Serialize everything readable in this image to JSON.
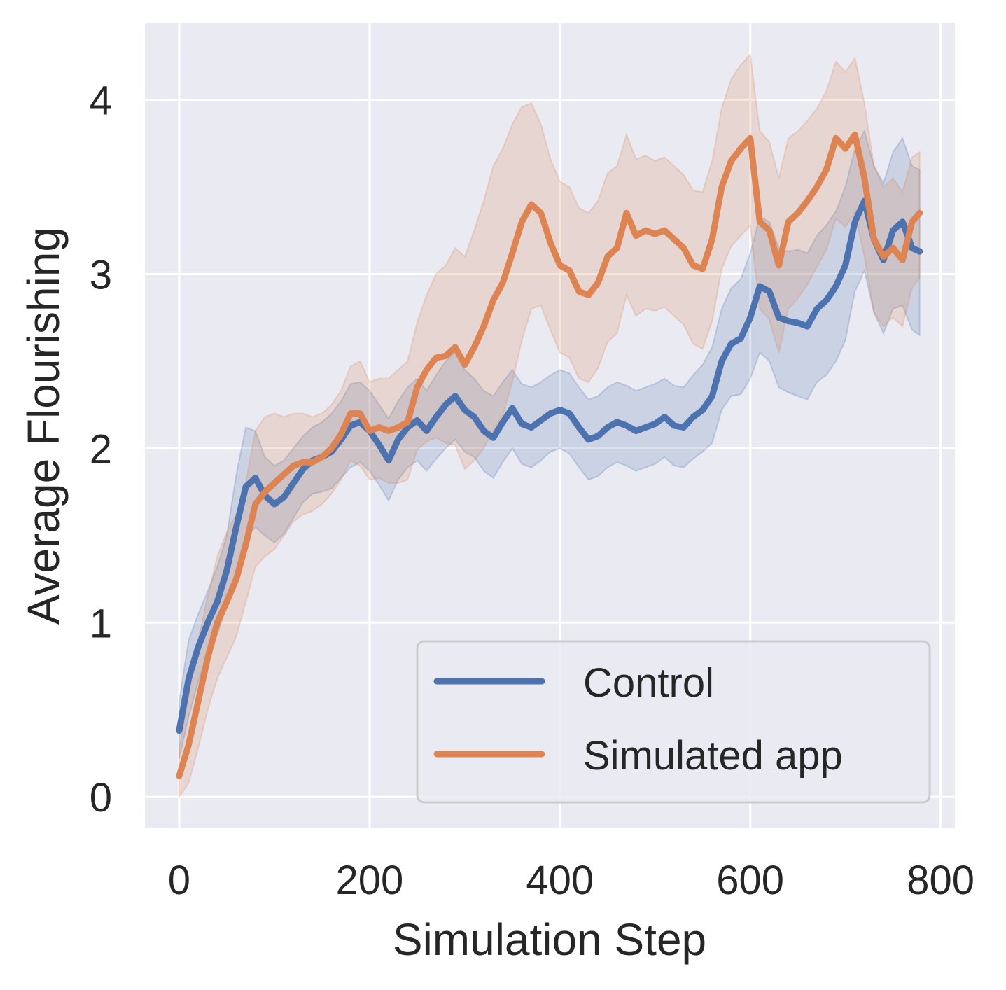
{
  "chart_data": {
    "type": "line",
    "title": "",
    "xlabel": "Simulation Step",
    "ylabel": "Average Flourishing",
    "xlim": [
      -36,
      815
    ],
    "ylim": [
      -0.18,
      4.44
    ],
    "xticks": [
      0,
      200,
      400,
      600,
      800
    ],
    "yticks": [
      0,
      1,
      2,
      3,
      4
    ],
    "grid": true,
    "legend_position": "lower-right",
    "series": [
      {
        "name": "Control",
        "color": "#4c72b0",
        "x": [
          0,
          10,
          20,
          30,
          40,
          50,
          60,
          70,
          80,
          90,
          100,
          110,
          120,
          130,
          140,
          150,
          160,
          170,
          180,
          190,
          200,
          210,
          220,
          230,
          240,
          250,
          260,
          270,
          280,
          290,
          300,
          310,
          320,
          330,
          340,
          350,
          360,
          370,
          380,
          390,
          400,
          410,
          420,
          430,
          440,
          450,
          460,
          470,
          480,
          490,
          500,
          510,
          520,
          530,
          540,
          550,
          560,
          570,
          580,
          590,
          600,
          610,
          620,
          630,
          640,
          650,
          660,
          670,
          680,
          690,
          700,
          710,
          720,
          730,
          740,
          750,
          760,
          770,
          778
        ],
        "y": [
          0.38,
          0.68,
          0.86,
          1.0,
          1.12,
          1.3,
          1.55,
          1.78,
          1.83,
          1.73,
          1.68,
          1.72,
          1.8,
          1.88,
          1.93,
          1.95,
          1.98,
          2.05,
          2.13,
          2.15,
          2.1,
          2.02,
          1.93,
          2.05,
          2.12,
          2.16,
          2.1,
          2.18,
          2.25,
          2.3,
          2.22,
          2.18,
          2.1,
          2.06,
          2.15,
          2.23,
          2.14,
          2.12,
          2.16,
          2.2,
          2.22,
          2.2,
          2.12,
          2.05,
          2.07,
          2.12,
          2.15,
          2.13,
          2.1,
          2.12,
          2.14,
          2.18,
          2.13,
          2.12,
          2.18,
          2.22,
          2.3,
          2.5,
          2.6,
          2.63,
          2.75,
          2.93,
          2.9,
          2.75,
          2.73,
          2.72,
          2.7,
          2.8,
          2.85,
          2.93,
          3.05,
          3.3,
          3.42,
          3.2,
          3.08,
          3.25,
          3.3,
          3.15,
          3.13
        ],
        "upper": [
          0.55,
          0.9,
          1.05,
          1.18,
          1.32,
          1.5,
          1.85,
          2.12,
          2.1,
          1.95,
          1.9,
          1.93,
          2.0,
          2.07,
          2.12,
          2.15,
          2.2,
          2.27,
          2.37,
          2.38,
          2.33,
          2.25,
          2.17,
          2.27,
          2.35,
          2.4,
          2.33,
          2.42,
          2.5,
          2.55,
          2.45,
          2.4,
          2.33,
          2.3,
          2.38,
          2.45,
          2.37,
          2.35,
          2.38,
          2.42,
          2.45,
          2.43,
          2.35,
          2.28,
          2.3,
          2.35,
          2.38,
          2.36,
          2.33,
          2.35,
          2.37,
          2.4,
          2.36,
          2.35,
          2.42,
          2.48,
          2.58,
          2.8,
          2.92,
          2.97,
          3.12,
          3.33,
          3.3,
          3.15,
          3.13,
          3.14,
          3.12,
          3.22,
          3.28,
          3.36,
          3.5,
          3.72,
          3.82,
          3.62,
          3.52,
          3.7,
          3.78,
          3.62,
          3.6
        ],
        "lower": [
          0.22,
          0.46,
          0.66,
          0.82,
          0.93,
          1.1,
          1.28,
          1.48,
          1.55,
          1.5,
          1.46,
          1.51,
          1.6,
          1.69,
          1.74,
          1.75,
          1.77,
          1.83,
          1.89,
          1.92,
          1.87,
          1.79,
          1.7,
          1.82,
          1.89,
          1.93,
          1.87,
          1.94,
          2.0,
          2.05,
          1.98,
          1.95,
          1.87,
          1.83,
          1.92,
          2.0,
          1.91,
          1.89,
          1.93,
          1.98,
          2.0,
          1.97,
          1.89,
          1.82,
          1.84,
          1.89,
          1.92,
          1.9,
          1.87,
          1.89,
          1.91,
          1.95,
          1.9,
          1.89,
          1.94,
          1.98,
          2.03,
          2.22,
          2.3,
          2.31,
          2.4,
          2.55,
          2.5,
          2.35,
          2.32,
          2.3,
          2.28,
          2.38,
          2.42,
          2.5,
          2.62,
          2.9,
          3.02,
          2.78,
          2.66,
          2.8,
          2.82,
          2.68,
          2.65
        ]
      },
      {
        "name": "Simulated app",
        "color": "#dd8452",
        "x": [
          0,
          10,
          20,
          30,
          40,
          50,
          60,
          70,
          80,
          90,
          100,
          110,
          120,
          130,
          140,
          150,
          160,
          170,
          180,
          190,
          200,
          210,
          220,
          230,
          240,
          250,
          260,
          270,
          280,
          290,
          300,
          310,
          320,
          330,
          340,
          350,
          360,
          370,
          380,
          390,
          400,
          410,
          420,
          430,
          440,
          450,
          460,
          470,
          480,
          490,
          500,
          510,
          520,
          530,
          540,
          550,
          560,
          570,
          580,
          590,
          600,
          610,
          620,
          630,
          640,
          650,
          660,
          670,
          680,
          690,
          700,
          710,
          720,
          730,
          740,
          750,
          760,
          770,
          778
        ],
        "y": [
          0.12,
          0.3,
          0.55,
          0.8,
          1.0,
          1.12,
          1.25,
          1.45,
          1.68,
          1.75,
          1.8,
          1.85,
          1.9,
          1.92,
          1.92,
          1.95,
          2.0,
          2.08,
          2.2,
          2.2,
          2.1,
          2.12,
          2.1,
          2.12,
          2.15,
          2.35,
          2.45,
          2.52,
          2.53,
          2.58,
          2.48,
          2.58,
          2.7,
          2.85,
          2.95,
          3.12,
          3.3,
          3.4,
          3.35,
          3.18,
          3.05,
          3.02,
          2.9,
          2.88,
          2.95,
          3.1,
          3.15,
          3.35,
          3.22,
          3.25,
          3.23,
          3.25,
          3.2,
          3.15,
          3.05,
          3.03,
          3.2,
          3.5,
          3.65,
          3.72,
          3.78,
          3.3,
          3.25,
          3.05,
          3.3,
          3.35,
          3.42,
          3.5,
          3.6,
          3.78,
          3.72,
          3.8,
          3.55,
          3.2,
          3.1,
          3.15,
          3.08,
          3.3,
          3.35
        ],
        "upper": [
          0.28,
          0.58,
          0.9,
          1.15,
          1.38,
          1.52,
          1.62,
          1.8,
          2.1,
          2.18,
          2.2,
          2.18,
          2.2,
          2.2,
          2.18,
          2.2,
          2.25,
          2.33,
          2.47,
          2.5,
          2.38,
          2.4,
          2.4,
          2.45,
          2.5,
          2.72,
          2.88,
          3.0,
          3.05,
          3.15,
          3.1,
          3.25,
          3.42,
          3.62,
          3.72,
          3.86,
          3.96,
          3.98,
          3.86,
          3.66,
          3.53,
          3.5,
          3.38,
          3.35,
          3.42,
          3.58,
          3.62,
          3.8,
          3.66,
          3.68,
          3.65,
          3.67,
          3.62,
          3.57,
          3.48,
          3.47,
          3.65,
          3.95,
          4.12,
          4.2,
          4.26,
          3.82,
          3.76,
          3.55,
          3.78,
          3.82,
          3.88,
          3.95,
          4.05,
          4.22,
          4.16,
          4.24,
          3.98,
          3.62,
          3.5,
          3.55,
          3.47,
          3.67,
          3.7
        ],
        "lower": [
          0.0,
          0.08,
          0.28,
          0.5,
          0.68,
          0.8,
          0.92,
          1.12,
          1.32,
          1.38,
          1.42,
          1.5,
          1.58,
          1.62,
          1.64,
          1.68,
          1.74,
          1.82,
          1.93,
          1.9,
          1.82,
          1.83,
          1.8,
          1.8,
          1.82,
          1.99,
          2.04,
          2.06,
          2.03,
          2.02,
          1.88,
          1.93,
          2.0,
          2.1,
          2.19,
          2.38,
          2.62,
          2.8,
          2.82,
          2.68,
          2.55,
          2.52,
          2.4,
          2.38,
          2.46,
          2.61,
          2.66,
          2.88,
          2.76,
          2.8,
          2.79,
          2.81,
          2.76,
          2.71,
          2.6,
          2.57,
          2.73,
          3.03,
          3.16,
          3.22,
          3.28,
          2.8,
          2.74,
          2.55,
          2.8,
          2.86,
          2.94,
          3.04,
          3.14,
          3.32,
          3.27,
          3.35,
          3.1,
          2.78,
          2.7,
          2.75,
          2.7,
          2.92,
          2.98
        ]
      }
    ]
  }
}
